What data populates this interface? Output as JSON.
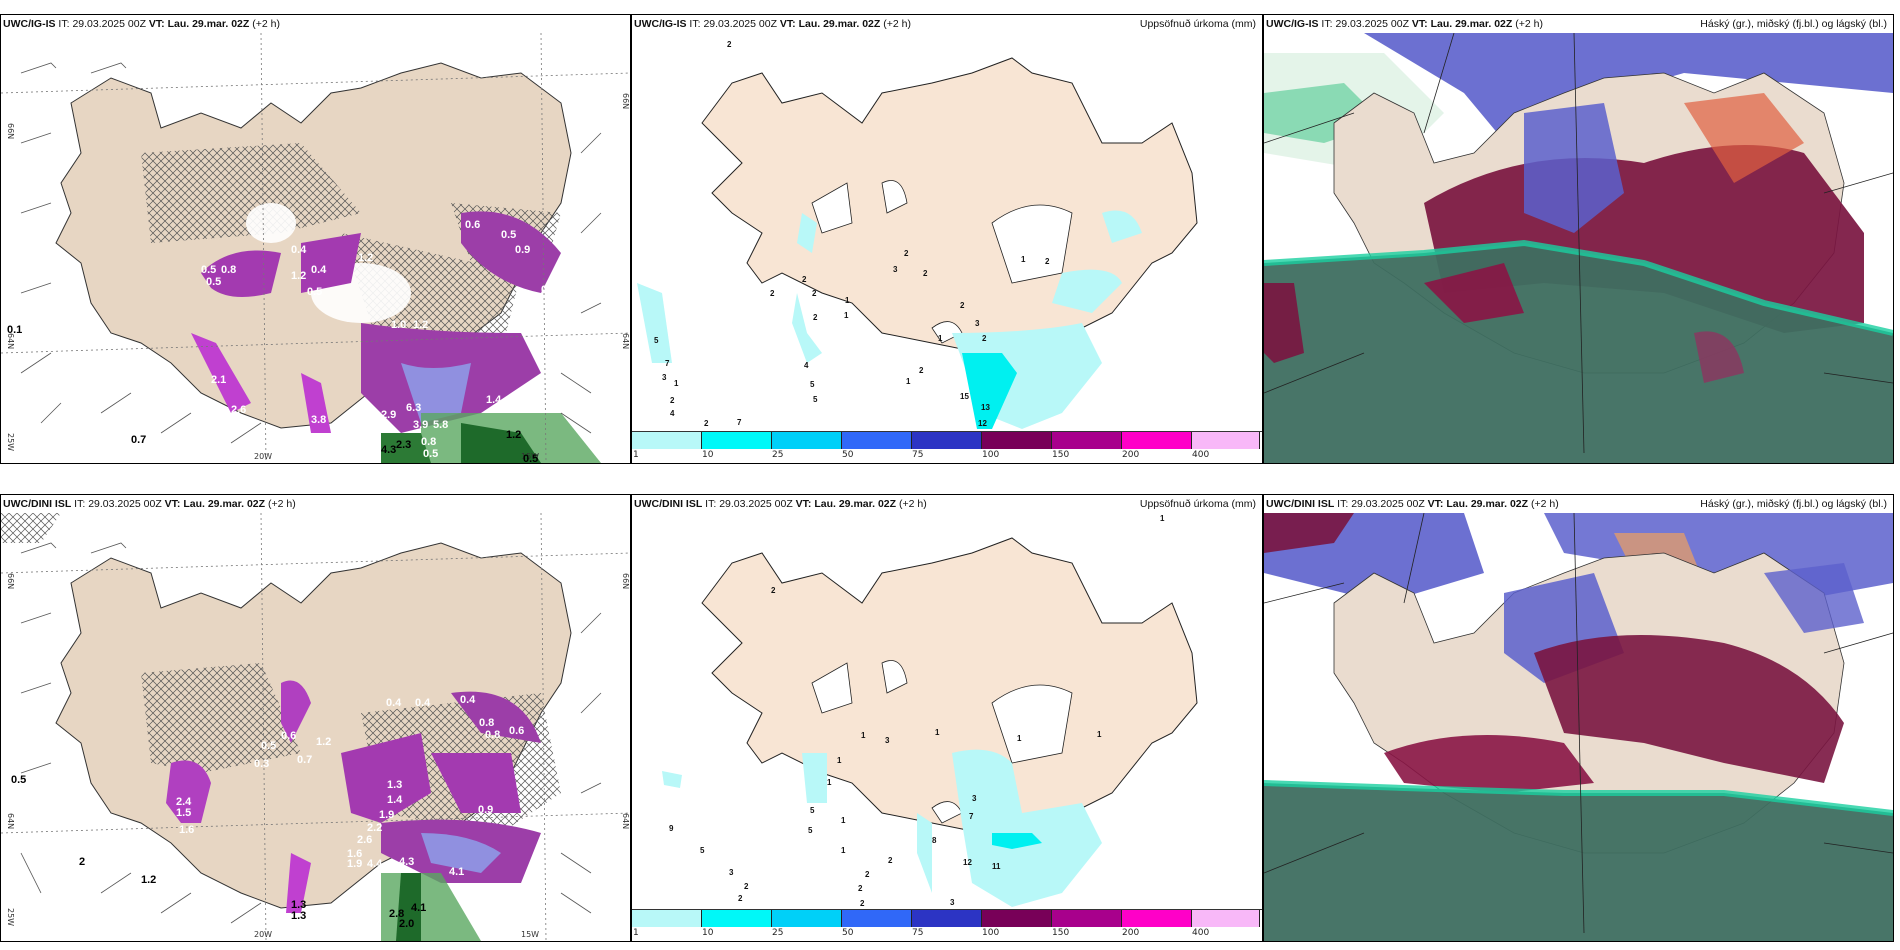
{
  "rows": [
    {
      "model": "UWC/IG-IS",
      "it_label": "IT:",
      "it_value": "29.03.2025 00Z",
      "vt_label": "VT:",
      "vt_value": "Lau. 29.mar. 02Z",
      "lead": "(+2 h)",
      "left_panel": {
        "lat_labels": [
          "66N",
          "64N"
        ],
        "lon_labels": [
          "25W",
          "20W",
          "15W"
        ],
        "right_lat_labels": [
          "66N",
          "64N"
        ],
        "contour_labels_white": [
          "0.5",
          "0.8",
          "0.5",
          "0.4",
          "1.2",
          "0.4",
          "1.2",
          "0.5",
          "0.5",
          "0.4",
          "0.5",
          "0.6",
          "0.5",
          "0.9",
          "0.8",
          "0.6",
          "0.9",
          "0.4",
          "0.5",
          "1.0",
          "1.2",
          "0.9",
          "0.6",
          "1.3",
          "0.6",
          "0.7",
          "2.1",
          "2.6",
          "3.8",
          "0.4",
          "2.9",
          "6.3",
          "3.9",
          "5.8",
          "1.4",
          "4.5",
          "0.8",
          "0.5"
        ],
        "contour_labels_black": [
          "4.3",
          "2.3",
          "1.2",
          "0.5",
          "0.1",
          "0.7"
        ]
      },
      "middle_panel": {
        "title_right": "Uppsöfnuð úrkoma (mm)",
        "values": [
          "2",
          "5",
          "7",
          "3",
          "1",
          "2",
          "4",
          "2",
          "7",
          "2",
          "2",
          "1",
          "2",
          "3",
          "2",
          "2",
          "1",
          "2",
          "4",
          "5",
          "5",
          "1",
          "2",
          "1",
          "2",
          "3",
          "2",
          "2",
          "1",
          "15",
          "13",
          "12"
        ]
      },
      "right_panel": {
        "title_right": "Háský (gr.), miðský (fj.bl.) og lágský (bl.)"
      }
    },
    {
      "model": "UWC/DINI ISL",
      "it_label": "IT:",
      "it_value": "29.03.2025 00Z",
      "vt_label": "VT:",
      "vt_value": "Lau. 29.mar. 02Z",
      "lead": "(+2 h)",
      "left_panel": {
        "lat_labels": [
          "66N",
          "64N"
        ],
        "lon_labels": [
          "25W",
          "20W",
          "15W"
        ],
        "right_lat_labels": [
          "66N",
          "64N"
        ],
        "contour_labels_white": [
          "0.6",
          "1.2",
          "0.7",
          "0.5",
          "0.3",
          "0.4",
          "0.4",
          "0.4",
          "0.8",
          "0.8",
          "0.8",
          "0.6",
          "1.3",
          "1.4",
          "1.9",
          "2.2",
          "2.6",
          "1.6",
          "1.9",
          "4.4",
          "4.3",
          "4.1",
          "2.4",
          "1.5",
          "1.6",
          "0.9",
          "0.6",
          "0.5",
          "1.0",
          "0.6",
          "0.9"
        ],
        "contour_labels_black": [
          "1.3",
          "1.3",
          "2.8",
          "4.1",
          "2.0",
          "2",
          "1.2",
          "0.5"
        ]
      },
      "middle_panel": {
        "title_right": "Uppsöfnuð úrkoma (mm)",
        "values": [
          "1",
          "2",
          "1",
          "1",
          "1",
          "3",
          "1",
          "1",
          "1",
          "5",
          "5",
          "1",
          "1",
          "9",
          "5",
          "3",
          "2",
          "2",
          "2",
          "2",
          "2",
          "2",
          "3",
          "7",
          "8",
          "12",
          "11",
          "3"
        ]
      },
      "right_panel": {
        "title_right": "Háský (gr.), miðský (fj.bl.) og lágský (bl.)"
      }
    }
  ],
  "colorbar": {
    "ticks": [
      "1",
      "10",
      "25",
      "50",
      "75",
      "100",
      "150",
      "200",
      "400"
    ],
    "colors": [
      "#b8f8f8",
      "#00f8f8",
      "#00d0f8",
      "#3068f8",
      "#2c34c4",
      "#780058",
      "#a8008c",
      "#ff00c8",
      "#f8b8f8"
    ]
  },
  "colors": {
    "land": "#f2dfcc",
    "land_left": "#e7d6c3",
    "precip_purple": "#c040d0",
    "snow_green": "#5aa860",
    "cloud_high": "#7a1540",
    "cloud_mid": "#5a5ad0",
    "cloud_low": "#3e6e60",
    "cloud_low_edge": "#1ad0a0"
  }
}
